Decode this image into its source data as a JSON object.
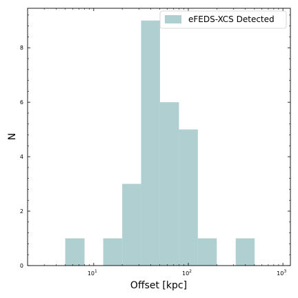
{
  "chart_data": {
    "type": "bar",
    "xscale": "log",
    "xlim": [
      2,
      1200
    ],
    "ylim": [
      0,
      9.45
    ],
    "xlabel": "Offset [kpc]",
    "ylabel": "N",
    "x_ticks": [
      {
        "value": 10,
        "label": "10",
        "exp": "1"
      },
      {
        "value": 100,
        "label": "10",
        "exp": "2"
      },
      {
        "value": 1000,
        "label": "10",
        "exp": "3"
      }
    ],
    "y_ticks": [
      0,
      2,
      4,
      6,
      8
    ],
    "series": [
      {
        "name": "eFEDS-XCS Detected",
        "color": "#b0cfd0",
        "bins": [
          {
            "lo": 5.0,
            "hi": 8.0,
            "count": 1
          },
          {
            "lo": 8.0,
            "hi": 12.6,
            "count": 0
          },
          {
            "lo": 12.6,
            "hi": 20.0,
            "count": 1
          },
          {
            "lo": 20.0,
            "hi": 31.7,
            "count": 3
          },
          {
            "lo": 31.7,
            "hi": 50.2,
            "count": 9
          },
          {
            "lo": 50.2,
            "hi": 79.6,
            "count": 6
          },
          {
            "lo": 79.6,
            "hi": 126.2,
            "count": 5
          },
          {
            "lo": 126.2,
            "hi": 200.0,
            "count": 1
          },
          {
            "lo": 200.0,
            "hi": 317.0,
            "count": 0
          },
          {
            "lo": 317.0,
            "hi": 502.4,
            "count": 1
          }
        ]
      }
    ],
    "legend": {
      "position": "top-right"
    },
    "grid": false
  }
}
